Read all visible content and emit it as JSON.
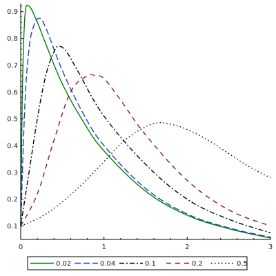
{
  "chart_data": {
    "type": "line",
    "title": "",
    "xlabel": "",
    "ylabel": "",
    "xlim": [
      0,
      3
    ],
    "ylim": [
      0.05,
      0.93
    ],
    "grid": false,
    "legend_position": "bottom",
    "x_ticks": [
      0,
      1,
      2,
      3
    ],
    "x_tick_labels": [
      "0",
      "1",
      "2",
      "3"
    ],
    "y_ticks": [
      0.1,
      0.2,
      0.3,
      0.4,
      0.5,
      0.6,
      0.7,
      0.8,
      0.9
    ],
    "y_tick_labels": [
      "0.1",
      "0.2",
      "0.3",
      "0.4",
      "0.5",
      "0.6",
      "0.7",
      "0.8",
      "0.9"
    ],
    "series": [
      {
        "name": "0.02",
        "color": "#008000",
        "dash": "solid",
        "x": [
          0,
          0.02,
          0.05,
          0.1,
          0.2,
          0.3,
          0.5,
          0.75,
          1.0,
          1.5,
          2.0,
          2.5,
          3.0
        ],
        "y": [
          0.1,
          0.6,
          0.88,
          0.92,
          0.86,
          0.78,
          0.63,
          0.49,
          0.38,
          0.23,
          0.14,
          0.09,
          0.055
        ]
      },
      {
        "name": "0.04",
        "color": "#1a3fd6",
        "dash": "long-dash",
        "x": [
          0,
          0.05,
          0.1,
          0.15,
          0.22,
          0.3,
          0.5,
          0.75,
          1.0,
          1.5,
          2.0,
          2.5,
          3.0
        ],
        "y": [
          0.1,
          0.55,
          0.76,
          0.84,
          0.875,
          0.84,
          0.68,
          0.52,
          0.4,
          0.24,
          0.145,
          0.093,
          0.058
        ]
      },
      {
        "name": "0.1",
        "color": "#000000",
        "dash": "dash-dot",
        "x": [
          0,
          0.1,
          0.2,
          0.3,
          0.4,
          0.46,
          0.55,
          0.7,
          1.0,
          1.5,
          2.0,
          2.5,
          3.0
        ],
        "y": [
          0.1,
          0.3,
          0.5,
          0.66,
          0.75,
          0.77,
          0.75,
          0.67,
          0.51,
          0.33,
          0.2,
          0.125,
          0.075
        ]
      },
      {
        "name": "0.2",
        "color": "#8b1a1a",
        "dash": "dash",
        "x": [
          0,
          0.2,
          0.4,
          0.6,
          0.8,
          0.9,
          1.0,
          1.2,
          1.5,
          2.0,
          2.5,
          3.0
        ],
        "y": [
          0.1,
          0.22,
          0.42,
          0.6,
          0.66,
          0.66,
          0.65,
          0.57,
          0.44,
          0.27,
          0.16,
          0.1
        ]
      },
      {
        "name": "0.5",
        "color": "#000000",
        "dash": "dot",
        "x": [
          0,
          0.25,
          0.5,
          0.75,
          1.0,
          1.25,
          1.5,
          1.65,
          1.8,
          2.0,
          2.25,
          2.5,
          2.75,
          3.0
        ],
        "y": [
          0.1,
          0.135,
          0.19,
          0.26,
          0.34,
          0.42,
          0.47,
          0.485,
          0.48,
          0.46,
          0.42,
          0.37,
          0.32,
          0.28
        ]
      }
    ]
  }
}
